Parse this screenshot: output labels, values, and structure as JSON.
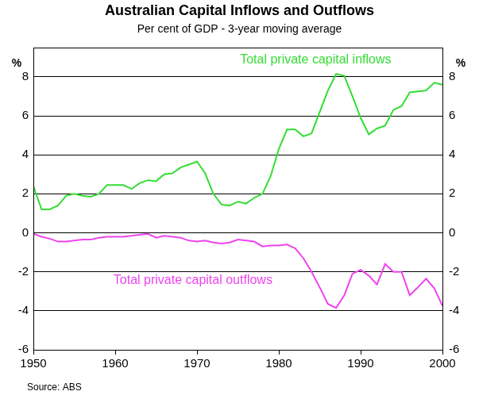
{
  "chart_data": {
    "type": "line",
    "title": "Australian Capital Inflows and Outflows",
    "subtitle": "Per cent of GDP - 3-year moving average",
    "y_label": "%",
    "y2_label": "%",
    "source": "Source: ABS",
    "x": [
      1950,
      1951,
      1952,
      1953,
      1954,
      1955,
      1956,
      1957,
      1958,
      1959,
      1960,
      1961,
      1962,
      1963,
      1964,
      1965,
      1966,
      1967,
      1968,
      1969,
      1970,
      1971,
      1972,
      1973,
      1974,
      1975,
      1976,
      1977,
      1978,
      1979,
      1980,
      1981,
      1982,
      1983,
      1984,
      1985,
      1986,
      1987,
      1988,
      1989,
      1990,
      1991,
      1992,
      1993,
      1994,
      1995,
      1996,
      1997,
      1998,
      1999,
      2000
    ],
    "series": [
      {
        "name": "Total private capital inflows",
        "color": "#33dd33",
        "values": [
          2.4,
          1.2,
          1.2,
          1.4,
          1.9,
          2.0,
          1.9,
          1.85,
          2.0,
          2.45,
          2.45,
          2.45,
          2.25,
          2.55,
          2.7,
          2.65,
          3.0,
          3.05,
          3.35,
          3.5,
          3.65,
          3.05,
          2.0,
          1.45,
          1.4,
          1.6,
          1.5,
          1.8,
          2.0,
          2.9,
          4.3,
          5.3,
          5.3,
          4.95,
          5.1,
          6.2,
          7.3,
          8.15,
          8.05,
          7.0,
          5.9,
          5.05,
          5.35,
          5.5,
          6.3,
          6.5,
          7.2,
          7.25,
          7.3,
          7.7,
          7.6
        ]
      },
      {
        "name": "Total private capital outflows",
        "color": "#ee44ee",
        "values": [
          -0.05,
          -0.2,
          -0.3,
          -0.45,
          -0.45,
          -0.4,
          -0.35,
          -0.35,
          -0.25,
          -0.2,
          -0.2,
          -0.2,
          -0.15,
          -0.1,
          -0.05,
          -0.25,
          -0.15,
          -0.2,
          -0.25,
          -0.4,
          -0.45,
          -0.4,
          -0.5,
          -0.55,
          -0.5,
          -0.35,
          -0.4,
          -0.45,
          -0.7,
          -0.65,
          -0.65,
          -0.6,
          -0.8,
          -1.3,
          -2.0,
          -2.8,
          -3.65,
          -3.85,
          -3.2,
          -2.1,
          -1.9,
          -2.2,
          -2.65,
          -1.6,
          -2.0,
          -2.0,
          -3.2,
          -2.8,
          -2.35,
          -2.85,
          -3.75
        ]
      }
    ],
    "xlim": [
      1950,
      2000
    ],
    "xticks": [
      1950,
      1960,
      1970,
      1980,
      1990,
      2000
    ],
    "ylim": [
      -6,
      9.5
    ],
    "yticks": [
      -6,
      -4,
      -2,
      0,
      2,
      4,
      6,
      8
    ],
    "y2lim": [
      -6,
      9.5
    ],
    "y2ticks": [
      -6,
      -4,
      -2,
      0,
      2,
      4,
      6,
      8
    ],
    "grid": true
  }
}
